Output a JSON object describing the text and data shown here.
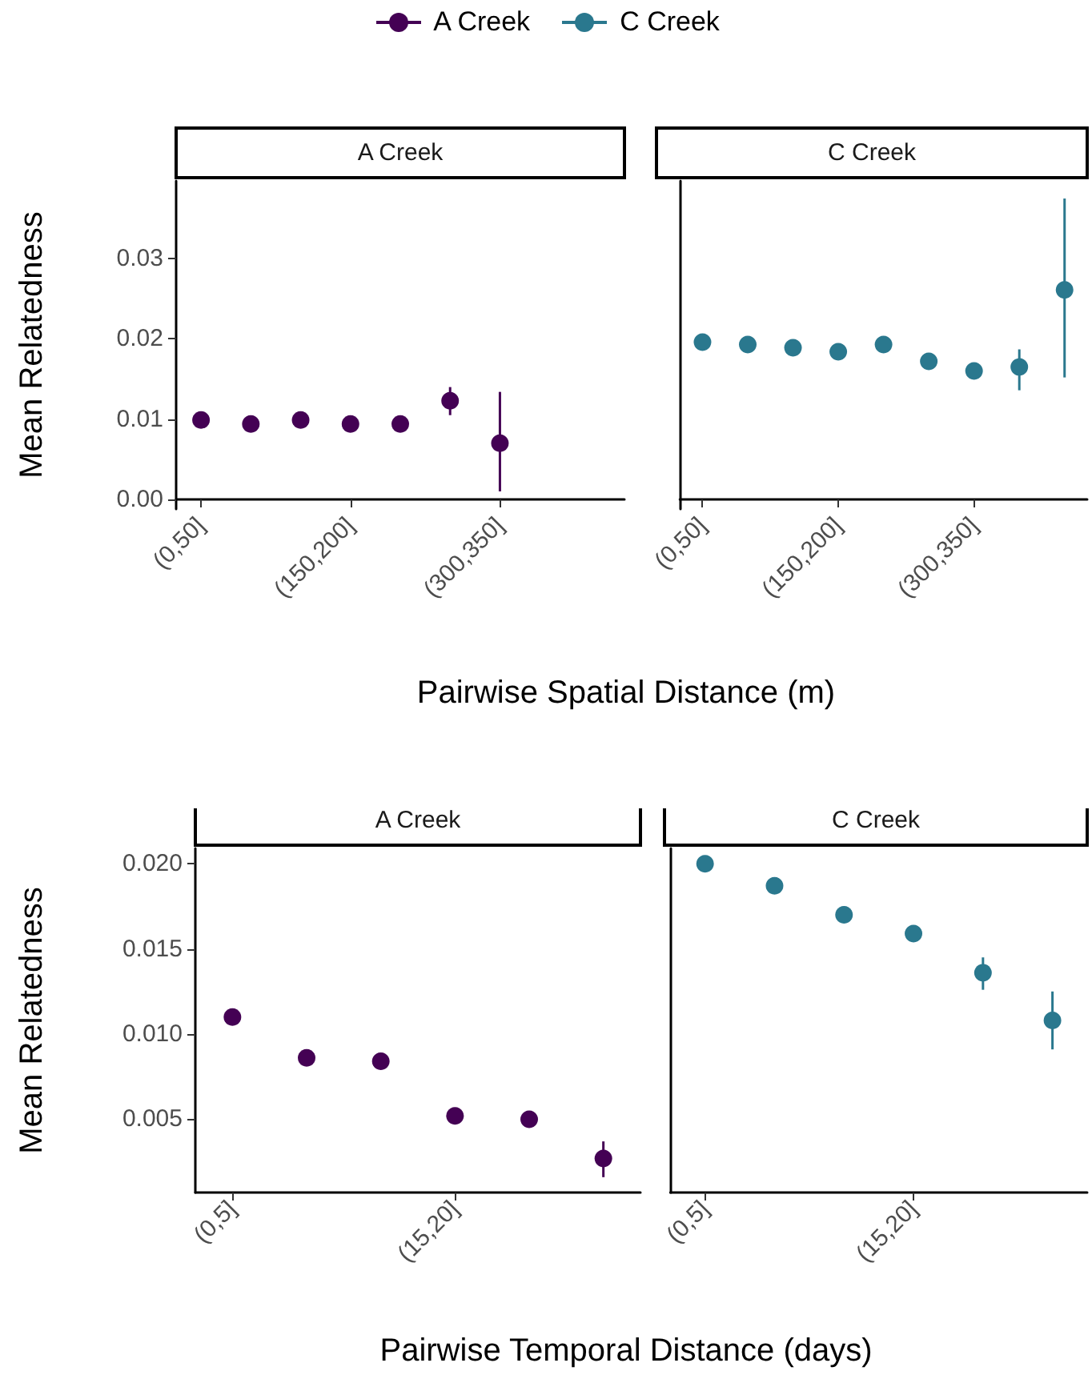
{
  "chart_data": [
    {
      "type": "scatter",
      "title": "A Creek",
      "ylabel": "Mean Relatedness",
      "xlabel": "Pairwise Spatial Distance (m)",
      "categories": [
        "(0,50]",
        null,
        null,
        "(150,200]",
        null,
        null,
        "(300,350]",
        null,
        null
      ],
      "ylim": [
        -0.0012,
        0.0397
      ],
      "yticks": [
        {
          "value": 0,
          "label": "0.00"
        },
        {
          "value": 0.01,
          "label": "0.01"
        },
        {
          "value": 0.02,
          "label": "0.02"
        },
        {
          "value": 0.03,
          "label": "0.03"
        }
      ],
      "legend": "top",
      "marker": "circle",
      "series": [
        {
          "name": "A Creek",
          "color": "#440154",
          "values": [
            0.0099,
            0.0094,
            0.0099,
            0.0094,
            0.0094,
            0.0123,
            0.007,
            null,
            null
          ],
          "errors": [
            null,
            null,
            null,
            null,
            null,
            [
              0.0105,
              0.014
            ],
            [
              0.001,
              0.0134
            ],
            null,
            null
          ]
        }
      ]
    },
    {
      "type": "scatter",
      "title": "C Creek",
      "categories": [
        "(0,50]",
        null,
        null,
        "(150,200]",
        null,
        null,
        "(300,350]",
        null,
        null
      ],
      "ylim": [
        -0.0012,
        0.0397
      ],
      "tick_labels": "x",
      "legend": "top",
      "marker": "circle",
      "series": [
        {
          "name": "C Creek",
          "color": "#2a788e",
          "values": [
            0.0196,
            0.0193,
            0.0189,
            0.0184,
            0.0193,
            0.0172,
            0.016,
            0.0165,
            0.0261
          ],
          "errors": [
            null,
            null,
            null,
            null,
            null,
            null,
            null,
            [
              0.0136,
              0.0187
            ],
            [
              0.0152,
              0.0375
            ]
          ]
        }
      ]
    },
    {
      "type": "scatter",
      "title": "A Creek",
      "ylabel": "Mean Relatedness",
      "xlabel": "Pairwise Temporal Distance (days)",
      "categories": [
        "(0,5]",
        null,
        null,
        "(15,20]",
        null,
        null
      ],
      "ylim": [
        0.0007,
        0.0209
      ],
      "yticks": [
        {
          "value": 0.005,
          "label": "0.005"
        },
        {
          "value": 0.01,
          "label": "0.010"
        },
        {
          "value": 0.015,
          "label": "0.015"
        },
        {
          "value": 0.02,
          "label": "0.020"
        }
      ],
      "marker": "circle",
      "series": [
        {
          "color": "#440154",
          "values": [
            0.011,
            0.0086,
            0.0084,
            0.0052,
            0.005,
            0.0027
          ],
          "errors": [
            null,
            null,
            null,
            null,
            null,
            [
              0.0016,
              0.0037
            ]
          ]
        }
      ]
    },
    {
      "type": "scatter",
      "title": "C Creek",
      "categories": [
        "(0,5]",
        null,
        null,
        "(15,20]",
        null,
        null
      ],
      "ylim": [
        0.0007,
        0.0209
      ],
      "tick_labels": "x",
      "marker": "circle",
      "series": [
        {
          "color": "#2a788e",
          "values": [
            0.02,
            0.0187,
            0.017,
            0.0159,
            0.0136,
            0.0108
          ],
          "errors": [
            null,
            null,
            null,
            null,
            [
              0.0126,
              0.0145
            ],
            [
              0.0091,
              0.0125
            ]
          ]
        }
      ]
    }
  ]
}
